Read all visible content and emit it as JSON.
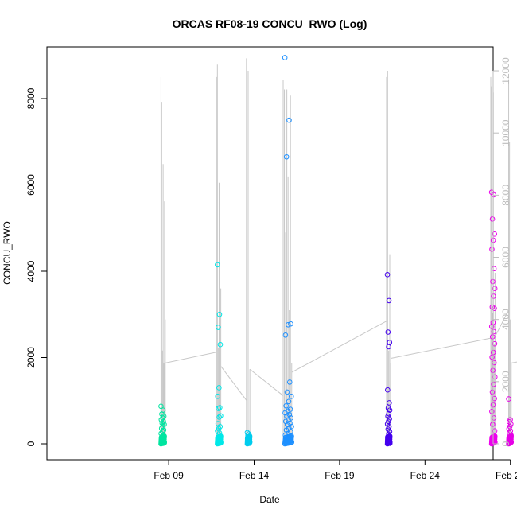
{
  "chart_data": {
    "type": "scatter",
    "title": "ORCAS RF08-19 CONCU_RWO (Log)",
    "xlabel": "Date",
    "ylabel": "CONCU_RWO",
    "xlim": [
      "2018-02-04",
      "2018-03-01"
    ],
    "ylim": [
      0,
      9000
    ],
    "y2lim": [
      0,
      12500
    ],
    "x_ticks": [
      {
        "date": "2018-02-09",
        "label": "Feb 09"
      },
      {
        "date": "2018-02-14",
        "label": "Feb 14"
      },
      {
        "date": "2018-02-19",
        "label": "Feb 19"
      },
      {
        "date": "2018-02-24",
        "label": "Feb 24"
      },
      {
        "date": "2018-02-29",
        "label": "Feb 29"
      }
    ],
    "y_ticks": [
      0,
      2000,
      4000,
      6000,
      8000
    ],
    "y2_ticks": [
      0,
      2000,
      4000,
      6000,
      8000,
      10000,
      12000
    ],
    "grid": false,
    "legend": "none",
    "series": [
      {
        "flight": "RF08",
        "color": "#00e5a0",
        "start": 4.55,
        "end": 4.75,
        "points": [
          870,
          780,
          690,
          640,
          600,
          560,
          520,
          480,
          450,
          400,
          360,
          320,
          280,
          240,
          200,
          170,
          140,
          110,
          80,
          60,
          40,
          20,
          10
        ]
      },
      {
        "flight": "RF09",
        "color": "#00e8e8",
        "start": 7.85,
        "end": 8.05,
        "points": [
          4150,
          3000,
          2700,
          2300,
          1300,
          1100,
          840,
          820,
          650,
          620,
          470,
          400,
          350,
          300,
          250,
          200,
          150,
          120,
          90,
          60,
          40,
          20,
          10
        ]
      },
      {
        "flight": "RF10",
        "color": "#00ccee",
        "start": 9.6,
        "end": 9.75,
        "points": [
          260,
          230,
          200,
          170,
          140,
          120,
          100,
          80,
          60,
          40,
          20,
          10
        ]
      },
      {
        "flight": "RF11",
        "color": "#1e90ff",
        "start": 11.8,
        "end": 12.2,
        "points": [
          8950,
          7500,
          6650,
          2780,
          2760,
          2520,
          1430,
          1200,
          1100,
          980,
          880,
          800,
          760,
          720,
          680,
          640,
          600,
          560,
          520,
          480,
          440,
          400,
          360,
          320,
          280,
          240,
          200,
          160,
          120,
          80,
          40,
          10
        ]
      },
      {
        "flight": "RF12",
        "color": "#4400ee",
        "start": 17.8,
        "end": 17.95,
        "points": [
          3920,
          3320,
          2590,
          2350,
          2250,
          1250,
          950,
          830,
          780,
          700,
          640,
          580,
          520,
          460,
          400,
          340,
          280,
          220,
          160,
          100,
          50,
          10
        ]
      },
      {
        "flight": "RF13",
        "color": "#ee00ee",
        "start": 23.9,
        "end": 24.1,
        "points": [
          5830,
          5770,
          5210,
          4860,
          4720,
          4510,
          4060,
          3760,
          3600,
          3420,
          3170,
          3140,
          2810,
          2720,
          2600,
          2480,
          2320,
          2120,
          2010,
          1880,
          1700,
          1550,
          1380,
          1200,
          1050,
          900,
          750,
          600,
          450,
          300,
          150,
          20
        ]
      },
      {
        "flight": "RF14",
        "color": "#e600e6",
        "start": 24.9,
        "end": 25.05,
        "points": [
          1040,
          560,
          510,
          460,
          400,
          350,
          300,
          250,
          200,
          150,
          100,
          50,
          10
        ]
      },
      {
        "flight": "RF15",
        "color": "#ff0077",
        "start": 29.15,
        "end": 29.35,
        "points": [
          1230,
          1170,
          1100,
          1020,
          950,
          880,
          810,
          740,
          680,
          620,
          560,
          500,
          440,
          380,
          320,
          260,
          200,
          140,
          80,
          30,
          10
        ]
      }
    ],
    "trace_y2": {
      "color": "#c8c8c8",
      "flights": [
        {
          "start": 4.55,
          "end": 4.8,
          "peaks": [
            11800,
            11000,
            3000,
            9000,
            2600,
            7800,
            4000
          ]
        },
        {
          "start": 7.8,
          "end": 8.05,
          "peaks": [
            11800,
            12200,
            3100,
            8400,
            2900,
            5000
          ]
        },
        {
          "start": 9.55,
          "end": 9.75,
          "peaks": [
            12400,
            12000,
            2400
          ]
        },
        {
          "start": 11.7,
          "end": 12.2,
          "peaks": [
            11700,
            11400,
            6800,
            11400,
            8600,
            4300,
            11200,
            2600
          ]
        },
        {
          "start": 17.75,
          "end": 18.0,
          "peaks": [
            11800,
            12000,
            3000,
            6100,
            2600
          ]
        },
        {
          "start": 23.85,
          "end": 24.1,
          "peaks": [
            11800,
            11500,
            4200,
            11300,
            3200,
            5500
          ]
        },
        {
          "start": 24.9,
          "end": 25.05,
          "peaks": [
            11700,
            9700,
            4000,
            2600
          ]
        },
        {
          "start": 29.05,
          "end": 29.35,
          "peaks": [
            11400,
            12200,
            12500,
            6400,
            2900
          ]
        }
      ],
      "connectors": [
        {
          "from": [
            4.8,
            2600
          ],
          "to": [
            7.8,
            2950
          ]
        },
        {
          "from": [
            8.05,
            2500
          ],
          "to": [
            9.55,
            1400
          ]
        },
        {
          "from": [
            9.75,
            2400
          ],
          "to": [
            11.7,
            1550
          ]
        },
        {
          "from": [
            12.2,
            2300
          ],
          "to": [
            17.75,
            3950
          ]
        },
        {
          "from": [
            18.0,
            2750
          ],
          "to": [
            23.85,
            3400
          ]
        },
        {
          "from": [
            24.1,
            3450
          ],
          "to": [
            24.9,
            4300
          ]
        },
        {
          "from": [
            25.05,
            2600
          ],
          "to": [
            29.05,
            3000
          ]
        }
      ]
    }
  }
}
